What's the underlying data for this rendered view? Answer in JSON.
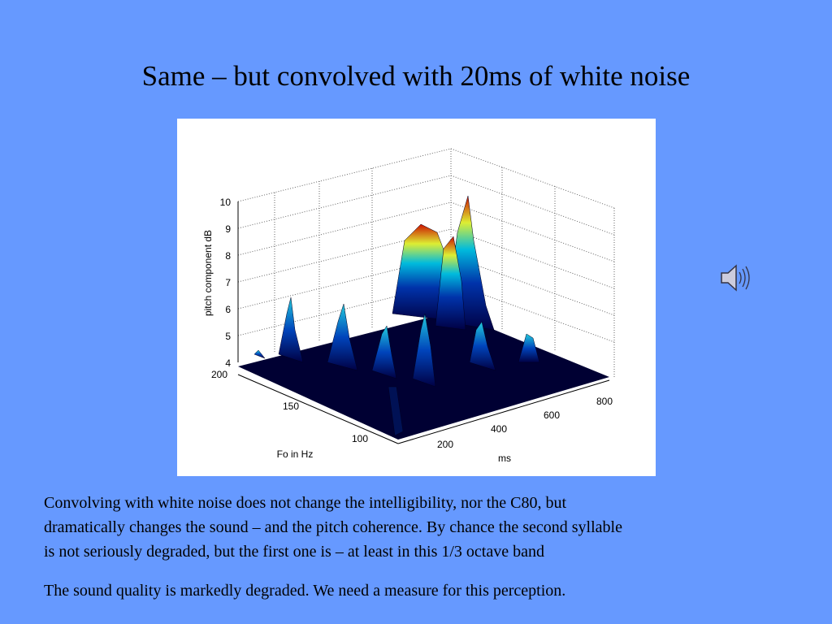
{
  "title": "Same – but convolved with 20ms of white noise",
  "figure": {
    "z_label": "pitch component dB",
    "y_label": "Fo in Hz",
    "x_label": "ms",
    "z_ticks": [
      "4",
      "5",
      "6",
      "7",
      "8",
      "9",
      "10"
    ],
    "y_ticks": [
      "100",
      "150",
      "200"
    ],
    "x_ticks": [
      "200",
      "400",
      "600",
      "800"
    ]
  },
  "paragraphs": [
    [
      "Convolving with white noise does not change the intelligibility, nor the C80, but",
      "dramatically changes the sound – and the pitch coherence.  By chance the second syllable",
      "is not seriously degraded, but the first one is – at least in this 1/3 octave band"
    ],
    [
      "The sound quality is markedly degraded.  We need a measure for this perception."
    ]
  ]
}
